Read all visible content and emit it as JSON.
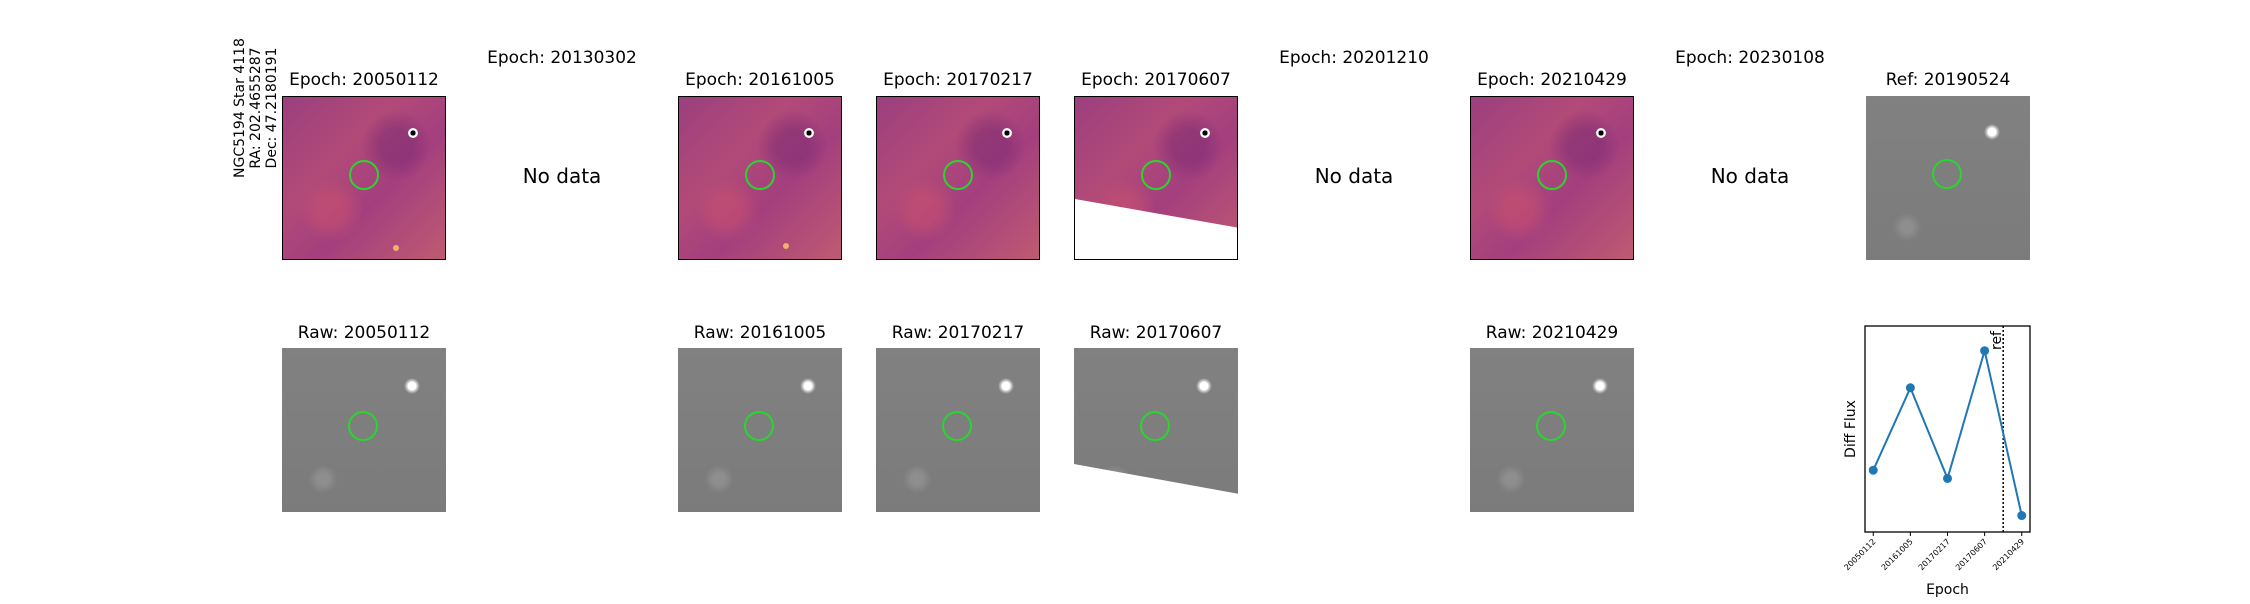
{
  "side_label": {
    "line1": "NGC5194 Star 4118",
    "line2": "RA: 202.4655287",
    "line3": "Dec: 47.2180191"
  },
  "diff_panels": [
    {
      "title": "Epoch: 20050112",
      "has_data": true
    },
    {
      "title": "Epoch: 20130302",
      "has_data": false,
      "text": "No data"
    },
    {
      "title": "Epoch: 20161005",
      "has_data": true
    },
    {
      "title": "Epoch: 20170217",
      "has_data": true
    },
    {
      "title": "Epoch: 20170607",
      "has_data": true,
      "partial": true
    },
    {
      "title": "Epoch: 20201210",
      "has_data": false,
      "text": "No data"
    },
    {
      "title": "Epoch: 20210429",
      "has_data": true
    },
    {
      "title": "Epoch: 20230108",
      "has_data": false,
      "text": "No data"
    },
    {
      "title": "Ref: 20190524",
      "has_data": true,
      "reference": true
    }
  ],
  "raw_panels": [
    {
      "title": "Raw: 20050112"
    },
    {
      "title": "Raw: 20161005"
    },
    {
      "title": "Raw: 20170217"
    },
    {
      "title": "Raw: 20170607",
      "partial": true
    },
    {
      "title": "Raw: 20210429"
    }
  ],
  "chart_data": {
    "type": "line",
    "categories": [
      "20050112",
      "20161005",
      "20170217",
      "20170607",
      "20210429"
    ],
    "values": [
      0.3,
      0.7,
      0.26,
      0.88,
      0.08
    ],
    "xlabel": "Epoch",
    "ylabel": "Diff Flux",
    "ref_marker_label": "ref",
    "ref_marker_between": [
      "20170607",
      "20210429"
    ],
    "ref_marker_fraction": 0.5,
    "colors": {
      "line": "#1f77b4",
      "marker": "#1f77b4",
      "ref": "#000000"
    }
  }
}
